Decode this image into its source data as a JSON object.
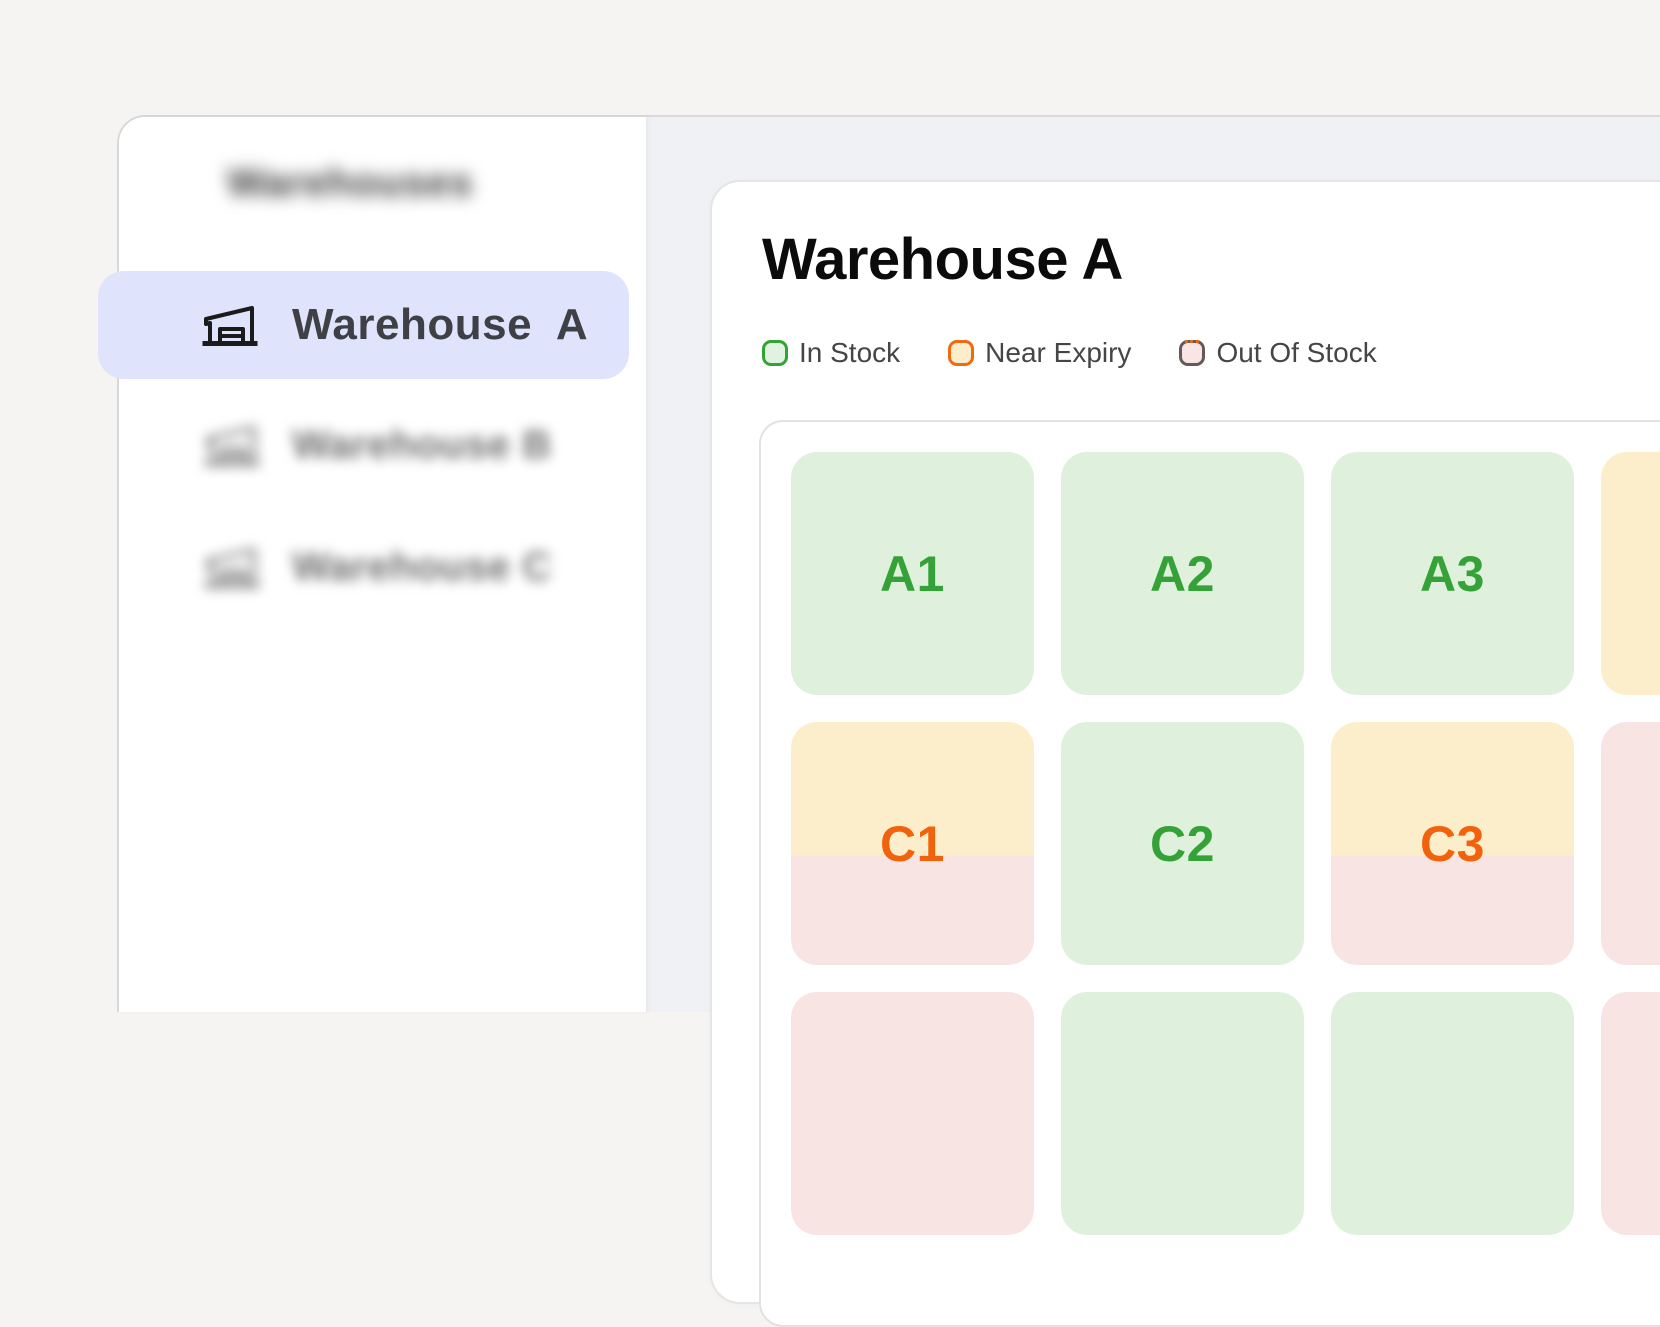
{
  "sidebar": {
    "title": "Warehouses",
    "items": [
      {
        "label": "Warehouse  A",
        "state": "selected"
      },
      {
        "label": "Warehouse B",
        "state": "blurred"
      },
      {
        "label": "Warehouse C",
        "state": "blurred"
      }
    ]
  },
  "main": {
    "title": "Warehouse A",
    "legend": [
      {
        "label": "In Stock",
        "border_color": "#34a336",
        "fill_color": "#e1f2e0"
      },
      {
        "label": "Near Expiry",
        "border_color": "#f2690e",
        "fill_color": "#fdeecb"
      },
      {
        "label": "Out Of Stock",
        "border_color": "#615b59",
        "fill_color": "#f9e5e4"
      }
    ],
    "grid_cells": [
      {
        "label": "A1",
        "status": "in-stock"
      },
      {
        "label": "A2",
        "status": "in-stock"
      },
      {
        "label": "A3",
        "status": "in-stock"
      },
      {
        "label": "",
        "status": "near-expiry"
      },
      {
        "label": "C1",
        "status": "near-expiry-out-of-stock"
      },
      {
        "label": "C2",
        "status": "in-stock"
      },
      {
        "label": "C3",
        "status": "near-expiry-out-of-stock"
      },
      {
        "label": "",
        "status": "out-of-stock"
      },
      {
        "label": "",
        "status": "out-of-stock"
      },
      {
        "label": "",
        "status": "in-stock"
      },
      {
        "label": "",
        "status": "in-stock"
      },
      {
        "label": "",
        "status": "out-of-stock"
      }
    ]
  },
  "colors": {
    "page_background": "#f5f4f2",
    "content_background": "#eff1f4",
    "selected_item_background": "#dfe3fb",
    "in_stock_fill": "#dff1dd",
    "in_stock_text": "#35a238",
    "near_expiry_fill": "#fdeecb",
    "near_expiry_text": "#f2610b",
    "out_of_stock_fill": "#f8e4e3"
  }
}
